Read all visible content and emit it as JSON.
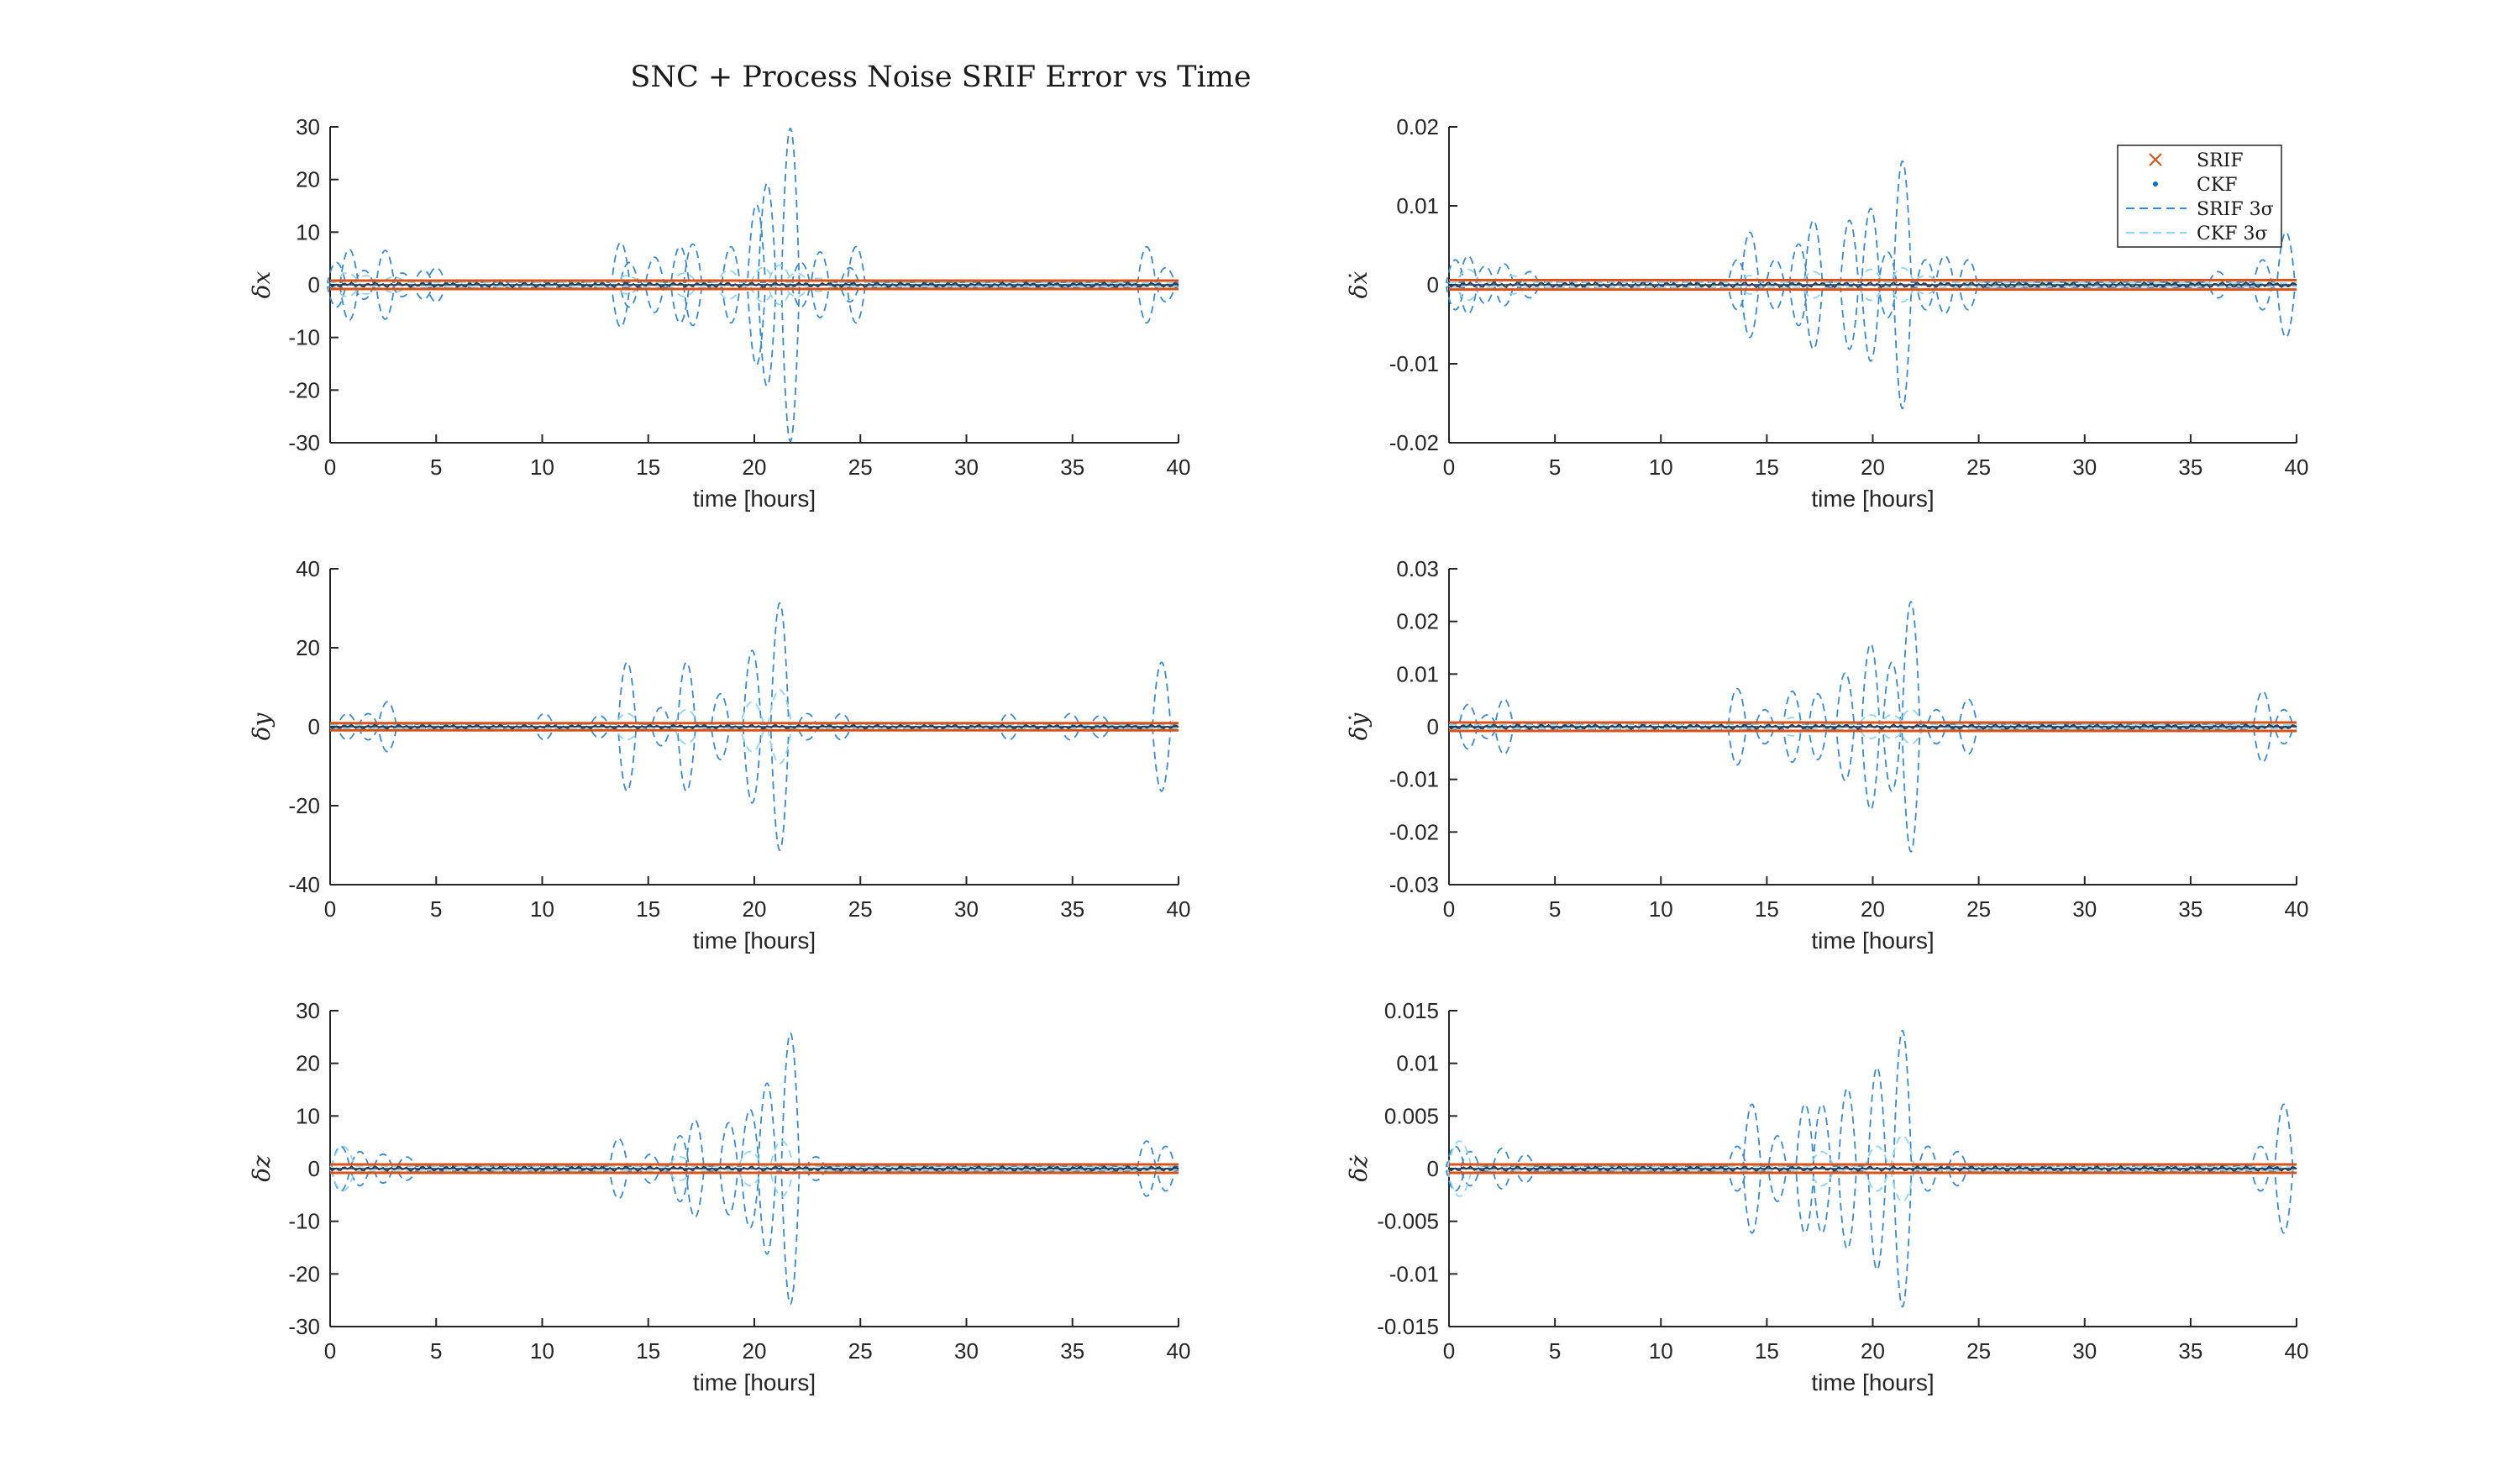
{
  "title": "SNC + Process Noise SRIF Error vs Time",
  "colors": {
    "srif": "#d95319",
    "ckf": "#0072bd",
    "srif_sigma": "#3a8ad0",
    "ckf_sigma": "#8fd6ea",
    "axis": "#262626"
  },
  "legend": {
    "placement": "top-right of first right-column plot",
    "entries": [
      {
        "label": "SRIF",
        "marker": "x"
      },
      {
        "label": "CKF",
        "marker": "dot"
      },
      {
        "label": "SRIF 3σ",
        "marker": "dashed"
      },
      {
        "label": "CKF 3σ",
        "marker": "dashed-light"
      }
    ]
  },
  "chart_data": [
    {
      "type": "line",
      "ylabel": "δx",
      "xlabel": "time [hours]",
      "xlim": [
        0,
        40
      ],
      "ylim": [
        -30,
        30
      ],
      "xticks": [
        0,
        5,
        10,
        15,
        20,
        25,
        30,
        35,
        40
      ],
      "yticks": [
        -30,
        -20,
        -10,
        0,
        10,
        20,
        30
      ],
      "ytick_labels": [
        "-30",
        "-20",
        "-10",
        "0",
        "10",
        "20",
        "30"
      ],
      "srif_sigma": {
        "x": [
          0.3,
          0.9,
          1.6,
          2.6,
          3.4,
          4.4,
          5.0,
          13.7,
          14.1,
          15.3,
          16.5,
          17.1,
          18.9,
          20.1,
          20.6,
          21.7,
          22.2,
          23.1,
          24.5,
          24.8,
          38.5,
          39.4
        ],
        "y": [
          4,
          6.5,
          2.5,
          6.3,
          2,
          2.5,
          3,
          7.8,
          4,
          5,
          7,
          7.5,
          7,
          15,
          19,
          29.5,
          4,
          6,
          3,
          7,
          7,
          3
        ]
      },
      "ckf_sigma": {
        "x": [
          0.8,
          1.7,
          3.0,
          14.0,
          16.7,
          18.8,
          20.4,
          21.2,
          22.0,
          23.0
        ],
        "y": [
          2,
          1.5,
          1.2,
          1.5,
          2,
          2.5,
          3,
          3.5,
          2,
          1
        ]
      },
      "srif_band": 0.8
    },
    {
      "type": "line",
      "ylabel": "δẋ",
      "xlabel": "time [hours]",
      "xlim": [
        0,
        40
      ],
      "ylim": [
        -0.02,
        0.02
      ],
      "xticks": [
        0,
        5,
        10,
        15,
        20,
        25,
        30,
        35,
        40
      ],
      "yticks": [
        -0.02,
        -0.01,
        0,
        0.01,
        0.02
      ],
      "ytick_labels": [
        "-0.02",
        "-0.01",
        "0",
        "0.01",
        "0.02"
      ],
      "srif_sigma": {
        "x": [
          0.3,
          0.9,
          1.7,
          2.6,
          3.8,
          13.6,
          14.2,
          15.4,
          16.5,
          17.2,
          18.9,
          19.9,
          20.7,
          21.4,
          22.5,
          23.4,
          24.5,
          36.3,
          38.4,
          39.5
        ],
        "y": [
          0.003,
          0.0035,
          0.0022,
          0.0025,
          0.0015,
          0.003,
          0.0065,
          0.003,
          0.005,
          0.008,
          0.008,
          0.0095,
          0.004,
          0.0155,
          0.003,
          0.0035,
          0.003,
          0.0015,
          0.003,
          0.0065
        ]
      },
      "ckf_sigma": {
        "x": [
          0.9,
          3.0,
          14.2,
          17.2,
          19.9,
          21.4,
          22.5
        ],
        "y": [
          0.0018,
          0.001,
          0.001,
          0.0015,
          0.0018,
          0.002,
          0.001
        ]
      },
      "srif_band": 0.0006
    },
    {
      "type": "line",
      "ylabel": "δy",
      "xlabel": "time [hours]",
      "xlim": [
        0,
        40
      ],
      "ylim": [
        -40,
        40
      ],
      "xticks": [
        0,
        5,
        10,
        15,
        20,
        25,
        30,
        35,
        40
      ],
      "yticks": [
        -40,
        -20,
        0,
        20,
        40
      ],
      "ytick_labels": [
        "-40",
        "-20",
        "0",
        "20",
        "40"
      ],
      "srif_sigma": {
        "x": [
          0.8,
          1.8,
          2.7,
          10.1,
          12.7,
          14.0,
          15.6,
          16.8,
          18.4,
          19.9,
          21.2,
          22.5,
          24.1,
          32.0,
          34.9,
          36.3,
          39.2
        ],
        "y": [
          3,
          3,
          6,
          3,
          2.5,
          16,
          4.5,
          16,
          8,
          19,
          31,
          3,
          3,
          3,
          3,
          2.5,
          16
        ]
      },
      "ckf_sigma": {
        "x": [
          14.0,
          16.8,
          19.9,
          21.2
        ],
        "y": [
          3,
          4,
          6,
          9
        ]
      },
      "srif_band": 0.9
    },
    {
      "type": "line",
      "ylabel": "δẏ",
      "xlabel": "time [hours]",
      "xlim": [
        0,
        40
      ],
      "ylim": [
        -0.03,
        0.03
      ],
      "xticks": [
        0,
        5,
        10,
        15,
        20,
        25,
        30,
        35,
        40
      ],
      "yticks": [
        -0.03,
        -0.02,
        -0.01,
        0,
        0.01,
        0.02,
        0.03
      ],
      "ytick_labels": [
        "-0.03",
        "-0.02",
        "-0.01",
        "0",
        "0.01",
        "0.02",
        "0.03"
      ],
      "srif_sigma": {
        "x": [
          0.9,
          1.8,
          2.6,
          13.6,
          14.9,
          16.2,
          17.4,
          18.7,
          19.9,
          20.9,
          21.8,
          23.0,
          24.5,
          38.4,
          39.4
        ],
        "y": [
          0.004,
          0.002,
          0.005,
          0.007,
          0.003,
          0.0065,
          0.006,
          0.01,
          0.0155,
          0.012,
          0.0235,
          0.003,
          0.005,
          0.0065,
          0.003
        ]
      },
      "ckf_sigma": {
        "x": [
          16.2,
          19.9,
          20.9,
          21.8
        ],
        "y": [
          0.0015,
          0.002,
          0.002,
          0.003
        ]
      },
      "srif_band": 0.0008
    },
    {
      "type": "line",
      "ylabel": "δz",
      "xlabel": "time [hours]",
      "xlim": [
        0,
        40
      ],
      "ylim": [
        -30,
        30
      ],
      "xticks": [
        0,
        5,
        10,
        15,
        20,
        25,
        30,
        35,
        40
      ],
      "yticks": [
        -30,
        -20,
        -10,
        0,
        10,
        20,
        30
      ],
      "ytick_labels": [
        "-30",
        "-20",
        "-10",
        "0",
        "10",
        "20",
        "30"
      ],
      "srif_sigma": {
        "x": [
          0.5,
          1.4,
          2.5,
          3.6,
          13.6,
          15.1,
          16.5,
          17.2,
          18.8,
          19.8,
          20.6,
          21.7,
          22.9,
          38.5,
          39.4
        ],
        "y": [
          4,
          3,
          2.5,
          2,
          5.5,
          2.5,
          6,
          9,
          8.5,
          11,
          16,
          25.5,
          2,
          5,
          4
        ]
      },
      "ckf_sigma": {
        "x": [
          0.6,
          16.5,
          19.8,
          21.3
        ],
        "y": [
          4,
          2,
          3,
          5
        ]
      },
      "srif_band": 0.8
    },
    {
      "type": "line",
      "ylabel": "δż",
      "xlabel": "time [hours]",
      "xlim": [
        0,
        40
      ],
      "ylim": [
        -0.015,
        0.015
      ],
      "xticks": [
        0,
        5,
        10,
        15,
        20,
        25,
        30,
        35,
        40
      ],
      "yticks": [
        -0.015,
        -0.01,
        -0.005,
        0,
        0.005,
        0.01,
        0.015
      ],
      "ytick_labels": [
        "-0.015",
        "-0.01",
        "-0.005",
        "0",
        "0.005",
        "0.01",
        "0.015"
      ],
      "srif_sigma": {
        "x": [
          0.3,
          1.0,
          2.5,
          3.6,
          13.6,
          14.3,
          15.5,
          16.8,
          17.6,
          18.8,
          20.2,
          21.4,
          22.6,
          24.0,
          38.3,
          39.4
        ],
        "y": [
          0.002,
          0.0015,
          0.0018,
          0.0012,
          0.002,
          0.006,
          0.003,
          0.006,
          0.006,
          0.0075,
          0.0095,
          0.013,
          0.002,
          0.0015,
          0.002,
          0.006
        ]
      },
      "ckf_sigma": {
        "x": [
          0.5,
          17.6,
          20.2,
          21.4
        ],
        "y": [
          0.0025,
          0.0015,
          0.002,
          0.003
        ]
      },
      "srif_band": 0.0004
    }
  ]
}
